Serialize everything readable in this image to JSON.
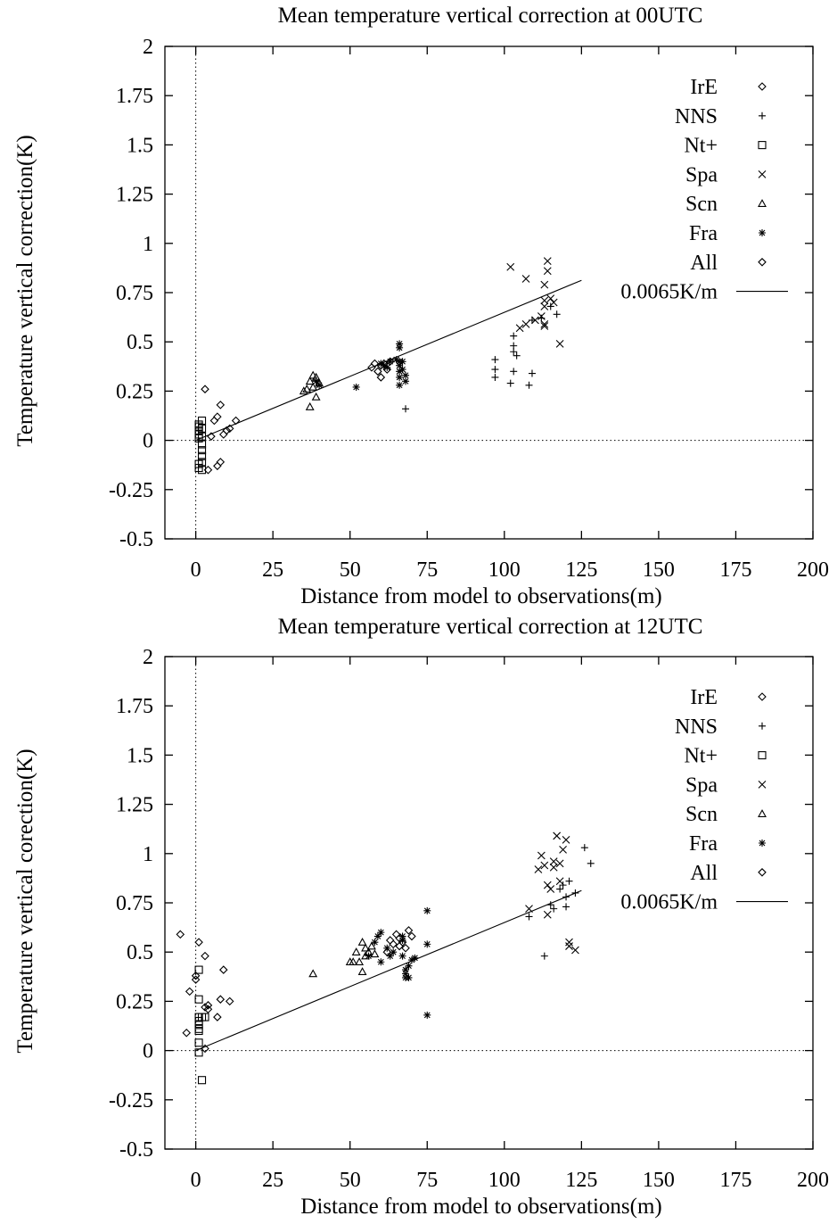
{
  "chart_data": [
    {
      "type": "scatter",
      "title": "Mean temperature vertical correction at 00UTC",
      "xlabel": "Distance from model to observations(m)",
      "ylabel": "Temperature vertical correction(K)",
      "xlim": [
        -10,
        200
      ],
      "ylim": [
        -0.5,
        2
      ],
      "xticks": [
        "0",
        "25",
        "50",
        "75",
        "100",
        "125",
        "150",
        "175",
        "200"
      ],
      "yticks": [
        "-0.5",
        "-0.25",
        "0",
        "0.25",
        "0.5",
        "0.75",
        "1",
        "1.25",
        "1.5",
        "1.75",
        "2"
      ],
      "legend_position": "top-right",
      "series": [
        {
          "name": "IrE",
          "marker": "diamond",
          "points": [
            [
              3,
              0.26
            ],
            [
              5,
              0.02
            ],
            [
              6,
              0.1
            ],
            [
              7,
              0.12
            ],
            [
              8,
              0.18
            ],
            [
              7,
              -0.13
            ],
            [
              8,
              -0.11
            ],
            [
              9,
              0.03
            ],
            [
              10,
              0.05
            ],
            [
              11,
              0.06
            ],
            [
              13,
              0.1
            ],
            [
              4,
              -0.15
            ]
          ]
        },
        {
          "name": "NNS",
          "marker": "plus",
          "points": [
            [
              68,
              0.16
            ],
            [
              97,
              0.41
            ],
            [
              97,
              0.36
            ],
            [
              97,
              0.32
            ],
            [
              102,
              0.29
            ],
            [
              103,
              0.53
            ],
            [
              103,
              0.48
            ],
            [
              103,
              0.45
            ],
            [
              104,
              0.43
            ],
            [
              103,
              0.35
            ],
            [
              108,
              0.28
            ],
            [
              109,
              0.34
            ],
            [
              109,
              0.61
            ],
            [
              112,
              0.62
            ],
            [
              115,
              0.68
            ],
            [
              117,
              0.64
            ]
          ]
        },
        {
          "name": "Nt+",
          "marker": "square",
          "points": [
            [
              1,
              0.08
            ],
            [
              1,
              0.07
            ],
            [
              1,
              0.05
            ],
            [
              1,
              0.03
            ],
            [
              1,
              0.01
            ],
            [
              2,
              0.1
            ],
            [
              2,
              0.06
            ],
            [
              2,
              0.02
            ],
            [
              2,
              -0.02
            ],
            [
              2,
              -0.05
            ],
            [
              2,
              -0.08
            ],
            [
              2,
              -0.11
            ],
            [
              1,
              -0.12
            ],
            [
              1,
              -0.14
            ],
            [
              2,
              -0.15
            ]
          ]
        },
        {
          "name": "Spa",
          "marker": "cross",
          "points": [
            [
              102,
              0.88
            ],
            [
              107,
              0.82
            ],
            [
              105,
              0.57
            ],
            [
              107,
              0.59
            ],
            [
              110,
              0.61
            ],
            [
              113,
              0.79
            ],
            [
              113,
              0.68
            ],
            [
              113,
              0.71
            ],
            [
              113,
              0.59
            ],
            [
              113,
              0.58
            ],
            [
              114,
              0.86
            ],
            [
              114,
              0.91
            ],
            [
              115,
              0.72
            ],
            [
              116,
              0.7
            ],
            [
              118,
              0.49
            ],
            [
              112,
              0.63
            ]
          ]
        },
        {
          "name": "Scn",
          "marker": "triangle",
          "points": [
            [
              35,
              0.25
            ],
            [
              36,
              0.26
            ],
            [
              37,
              0.3
            ],
            [
              37,
              0.17
            ],
            [
              38,
              0.33
            ],
            [
              38,
              0.27
            ],
            [
              39,
              0.22
            ],
            [
              39,
              0.32
            ],
            [
              40,
              0.29
            ]
          ]
        },
        {
          "name": "Fra",
          "marker": "star",
          "points": [
            [
              39,
              0.3
            ],
            [
              40,
              0.28
            ],
            [
              52,
              0.27
            ],
            [
              60,
              0.39
            ],
            [
              61,
              0.38
            ],
            [
              62,
              0.37
            ],
            [
              63,
              0.4
            ],
            [
              66,
              0.49
            ],
            [
              66,
              0.47
            ],
            [
              66,
              0.4
            ],
            [
              66,
              0.38
            ],
            [
              66,
              0.35
            ],
            [
              66,
              0.32
            ],
            [
              66,
              0.28
            ],
            [
              67,
              0.4
            ],
            [
              67,
              0.36
            ],
            [
              68,
              0.33
            ],
            [
              68,
              0.3
            ],
            [
              65,
              0.41
            ]
          ]
        },
        {
          "name": "All",
          "marker": "diamond",
          "points": [
            [
              57,
              0.37
            ],
            [
              58,
              0.39
            ],
            [
              59,
              0.35
            ],
            [
              60,
              0.38
            ],
            [
              60,
              0.32
            ],
            [
              61,
              0.39
            ],
            [
              62,
              0.36
            ],
            [
              63,
              0.4
            ]
          ]
        },
        {
          "name": "0.0065K/m",
          "marker": "line",
          "slope": 0.0065,
          "x_range": [
            0,
            125
          ]
        }
      ]
    },
    {
      "type": "scatter",
      "title": "Mean temperature vertical correction at 12UTC",
      "xlabel": "Distance from model to observations(m)",
      "ylabel": "Temperature vertical corection(K)",
      "xlim": [
        -10,
        200
      ],
      "ylim": [
        -0.5,
        2
      ],
      "xticks": [
        "0",
        "25",
        "50",
        "75",
        "100",
        "125",
        "150",
        "175",
        "200"
      ],
      "yticks": [
        "-0.5",
        "-0.25",
        "0",
        "0.25",
        "0.5",
        "0.75",
        "1",
        "1.25",
        "1.5",
        "1.75",
        "2"
      ],
      "legend_position": "top-right",
      "series": [
        {
          "name": "IrE",
          "marker": "diamond",
          "points": [
            [
              -5,
              0.59
            ],
            [
              -3,
              0.09
            ],
            [
              -2,
              0.3
            ],
            [
              0,
              0.38
            ],
            [
              0,
              0.36
            ],
            [
              1,
              0.55
            ],
            [
              3,
              0.48
            ],
            [
              3,
              0.22
            ],
            [
              4,
              0.21
            ],
            [
              4,
              0.23
            ],
            [
              3,
              0.01
            ],
            [
              7,
              0.17
            ],
            [
              8,
              0.26
            ],
            [
              9,
              0.41
            ],
            [
              11,
              0.25
            ]
          ]
        },
        {
          "name": "NNS",
          "marker": "plus",
          "points": [
            [
              108,
              0.68
            ],
            [
              113,
              0.48
            ],
            [
              115,
              0.74
            ],
            [
              116,
              0.72
            ],
            [
              118,
              0.82
            ],
            [
              119,
              0.84
            ],
            [
              120,
              0.73
            ],
            [
              120,
              0.78
            ],
            [
              121,
              0.86
            ],
            [
              123,
              0.8
            ],
            [
              126,
              1.03
            ],
            [
              128,
              0.95
            ]
          ]
        },
        {
          "name": "Nt+",
          "marker": "square",
          "points": [
            [
              1,
              0.41
            ],
            [
              1,
              0.26
            ],
            [
              1,
              0.17
            ],
            [
              1,
              0.15
            ],
            [
              1,
              0.13
            ],
            [
              1,
              0.1
            ],
            [
              1,
              0.04
            ],
            [
              1,
              -0.01
            ],
            [
              2,
              -0.15
            ],
            [
              2,
              0.17
            ],
            [
              3,
              0.17
            ],
            [
              1,
              0.11
            ]
          ]
        },
        {
          "name": "Spa",
          "marker": "cross",
          "points": [
            [
              108,
              0.72
            ],
            [
              111,
              0.92
            ],
            [
              112,
              0.99
            ],
            [
              113,
              0.94
            ],
            [
              114,
              0.69
            ],
            [
              114,
              0.84
            ],
            [
              115,
              0.82
            ],
            [
              116,
              0.93
            ],
            [
              116,
              0.96
            ],
            [
              117,
              1.09
            ],
            [
              118,
              0.95
            ],
            [
              119,
              1.02
            ],
            [
              120,
              1.07
            ],
            [
              121,
              0.53
            ],
            [
              121,
              0.55
            ],
            [
              123,
              0.51
            ],
            [
              118,
              0.86
            ]
          ]
        },
        {
          "name": "Scn",
          "marker": "triangle",
          "points": [
            [
              38,
              0.39
            ],
            [
              50,
              0.45
            ],
            [
              51,
              0.45
            ],
            [
              52,
              0.5
            ],
            [
              53,
              0.45
            ],
            [
              54,
              0.4
            ],
            [
              54,
              0.55
            ],
            [
              55,
              0.52
            ],
            [
              55,
              0.48
            ],
            [
              56,
              0.5
            ],
            [
              57,
              0.53
            ],
            [
              58,
              0.49
            ]
          ]
        },
        {
          "name": "Fra",
          "marker": "star",
          "points": [
            [
              56,
              0.48
            ],
            [
              58,
              0.55
            ],
            [
              59,
              0.58
            ],
            [
              60,
              0.6
            ],
            [
              60,
              0.45
            ],
            [
              62,
              0.52
            ],
            [
              63,
              0.48
            ],
            [
              64,
              0.5
            ],
            [
              67,
              0.56
            ],
            [
              67,
              0.48
            ],
            [
              68,
              0.41
            ],
            [
              68,
              0.39
            ],
            [
              68,
              0.37
            ],
            [
              69,
              0.37
            ],
            [
              69,
              0.43
            ],
            [
              70,
              0.46
            ],
            [
              71,
              0.47
            ],
            [
              75,
              0.71
            ],
            [
              75,
              0.54
            ],
            [
              75,
              0.18
            ],
            [
              67,
              0.58
            ]
          ]
        },
        {
          "name": "All",
          "marker": "diamond",
          "points": [
            [
              62,
              0.5
            ],
            [
              63,
              0.56
            ],
            [
              64,
              0.54
            ],
            [
              65,
              0.59
            ],
            [
              66,
              0.57
            ],
            [
              66,
              0.53
            ],
            [
              67,
              0.55
            ],
            [
              68,
              0.52
            ],
            [
              69,
              0.61
            ],
            [
              70,
              0.58
            ]
          ]
        },
        {
          "name": "0.0065K/m",
          "marker": "line",
          "slope": 0.0065,
          "x_range": [
            0,
            125
          ]
        }
      ]
    }
  ]
}
